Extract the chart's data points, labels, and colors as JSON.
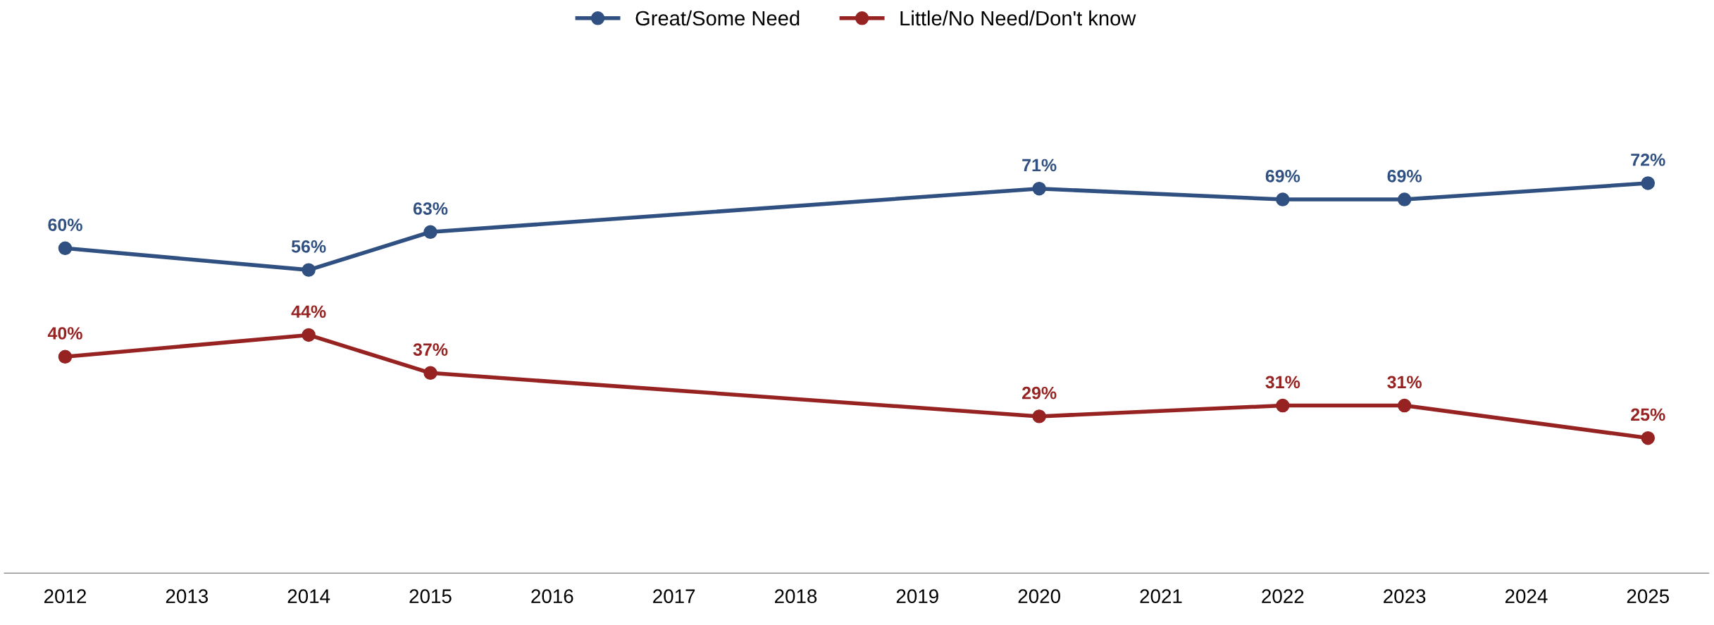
{
  "chart_data": {
    "type": "line",
    "categories": [
      "2012",
      "2013",
      "2014",
      "2015",
      "2016",
      "2017",
      "2018",
      "2019",
      "2020",
      "2021",
      "2022",
      "2023",
      "2024",
      "2025"
    ],
    "series": [
      {
        "name": "Great/Some Need",
        "color": "#2f5080",
        "values": [
          60,
          null,
          56,
          63,
          null,
          null,
          null,
          null,
          71,
          null,
          69,
          69,
          null,
          72
        ],
        "value_labels": [
          "60%",
          null,
          "56%",
          "63%",
          null,
          null,
          null,
          null,
          "71%",
          null,
          "69%",
          "69%",
          null,
          "72%"
        ]
      },
      {
        "name": "Little/No Need/Don't know",
        "color": "#962322",
        "values": [
          40,
          null,
          44,
          37,
          null,
          null,
          null,
          null,
          29,
          null,
          31,
          31,
          null,
          25
        ],
        "value_labels": [
          "40%",
          null,
          "44%",
          "37%",
          null,
          null,
          null,
          null,
          "29%",
          null,
          "31%",
          "31%",
          null,
          "25%"
        ]
      }
    ],
    "tick_labels": "x",
    "marker": "circle",
    "line_style": "solid",
    "legend": "top"
  }
}
